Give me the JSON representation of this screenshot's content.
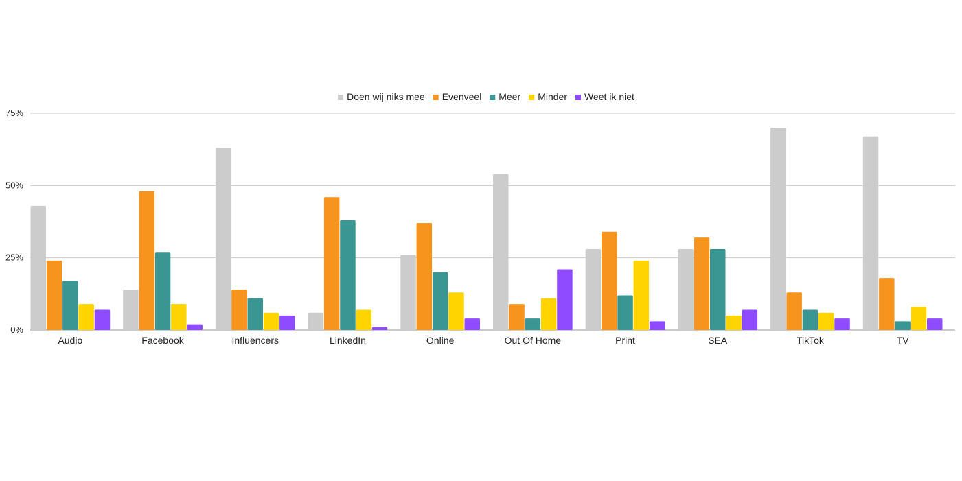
{
  "chart_data": {
    "type": "bar",
    "title": "",
    "xlabel": "",
    "ylabel": "",
    "ylim": [
      0,
      75
    ],
    "yticks": [
      {
        "value": 0,
        "label": "0%"
      },
      {
        "value": 25,
        "label": "25%"
      },
      {
        "value": 50,
        "label": "50%"
      },
      {
        "value": 75,
        "label": "75%"
      }
    ],
    "grid": true,
    "legend_position": "top-center",
    "categories": [
      "Audio",
      "Facebook",
      "Influencers",
      "LinkedIn",
      "Online",
      "Out Of Home",
      "Print",
      "SEA",
      "TikTok",
      "TV"
    ],
    "series": [
      {
        "name": "Doen wij niks mee",
        "color": "#cccccc",
        "values": [
          43,
          14,
          63,
          6,
          26,
          54,
          28,
          28,
          70,
          67
        ]
      },
      {
        "name": "Evenveel",
        "color": "#f7941d",
        "values": [
          24,
          48,
          14,
          46,
          37,
          9,
          34,
          32,
          13,
          18
        ]
      },
      {
        "name": "Meer",
        "color": "#3a9693",
        "values": [
          17,
          27,
          11,
          38,
          20,
          4,
          12,
          28,
          7,
          3
        ]
      },
      {
        "name": "Minder",
        "color": "#ffd400",
        "values": [
          9,
          9,
          6,
          7,
          13,
          11,
          24,
          5,
          6,
          8
        ]
      },
      {
        "name": "Weet ik niet",
        "color": "#8e4bff",
        "values": [
          7,
          2,
          5,
          1,
          4,
          21,
          3,
          7,
          4,
          4
        ]
      }
    ]
  }
}
